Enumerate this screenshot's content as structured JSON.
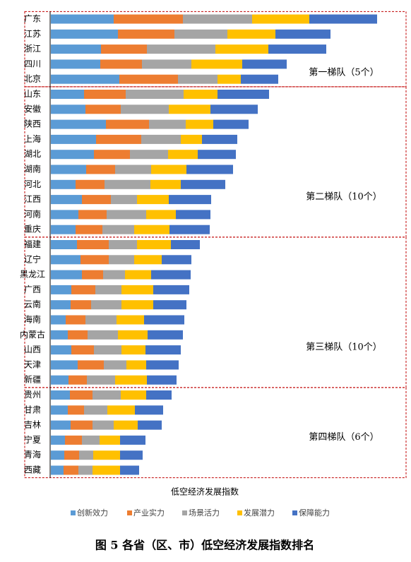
{
  "chart_data": {
    "type": "hbar_stacked",
    "x_label": "低空经济发展指数",
    "caption": "图 5 各省（区、市）低空经济发展指数排名",
    "categories": [
      "广东",
      "江苏",
      "浙江",
      "四川",
      "北京",
      "山东",
      "安徽",
      "陕西",
      "上海",
      "湖北",
      "湖南",
      "河北",
      "江西",
      "河南",
      "重庆",
      "福建",
      "辽宁",
      "黑龙江",
      "广西",
      "云南",
      "海南",
      "内蒙古",
      "山西",
      "天津",
      "新疆",
      "贵州",
      "甘肃",
      "吉林",
      "宁夏",
      "青海",
      "西藏"
    ],
    "groups": [
      {
        "label": "第一梯队（5个）",
        "count": 5
      },
      {
        "label": "第二梯队（10个）",
        "count": 10
      },
      {
        "label": "第三梯队（10个）",
        "count": 10
      },
      {
        "label": "第四梯队（6个）",
        "count": 6
      }
    ],
    "series": [
      {
        "name": "创新效力",
        "color": "#5b9bd5",
        "values": [
          89,
          95,
          71,
          70,
          97,
          47,
          49,
          78,
          64,
          61,
          50,
          35,
          44,
          39,
          35,
          37,
          42,
          44,
          29,
          28,
          21,
          24,
          29,
          38,
          25,
          27,
          24,
          28,
          20,
          19,
          18
        ]
      },
      {
        "name": "产业实力",
        "color": "#ed7d31",
        "values": [
          98,
          80,
          65,
          59,
          83,
          59,
          50,
          61,
          64,
          51,
          41,
          41,
          41,
          40,
          38,
          45,
          40,
          30,
          34,
          29,
          28,
          28,
          32,
          37,
          26,
          32,
          23,
          31,
          24,
          21,
          21
        ]
      },
      {
        "name": "场景活力",
        "color": "#a5a5a5",
        "values": [
          98,
          75,
          97,
          70,
          56,
          82,
          68,
          52,
          56,
          54,
          51,
          65,
          37,
          56,
          45,
          40,
          36,
          31,
          37,
          43,
          44,
          43,
          39,
          32,
          40,
          40,
          33,
          30,
          25,
          20,
          20
        ]
      },
      {
        "name": "发展潜力",
        "color": "#ffc000",
        "values": [
          81,
          68,
          75,
          72,
          33,
          48,
          59,
          39,
          30,
          42,
          50,
          43,
          45,
          42,
          50,
          48,
          39,
          37,
          45,
          45,
          39,
          42,
          34,
          28,
          45,
          36,
          39,
          34,
          29,
          38,
          39
        ]
      },
      {
        "name": "保障能力",
        "color": "#4472c4",
        "values": [
          96,
          78,
          82,
          63,
          53,
          73,
          67,
          50,
          50,
          54,
          66,
          63,
          60,
          49,
          57,
          41,
          42,
          56,
          51,
          47,
          57,
          50,
          50,
          46,
          42,
          36,
          40,
          34,
          36,
          32,
          27
        ]
      }
    ]
  }
}
